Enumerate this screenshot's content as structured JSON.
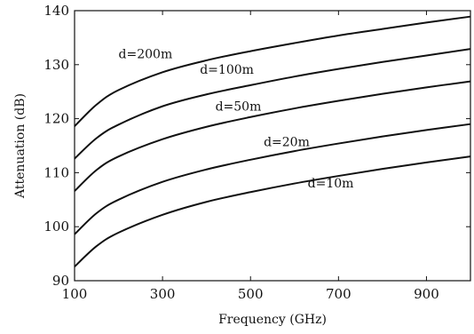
{
  "chart_data": {
    "type": "line",
    "title": "",
    "xlabel": "Frequency (GHz)",
    "ylabel": "Attenuation (dB)",
    "xlim": [
      100,
      1000
    ],
    "ylim": [
      90,
      140
    ],
    "x_ticks": [
      100,
      300,
      500,
      700,
      900
    ],
    "y_ticks": [
      90,
      100,
      110,
      120,
      130,
      140
    ],
    "x_tick_labels": [
      "100",
      "300",
      "500",
      "700",
      "900"
    ],
    "y_tick_labels": [
      "90",
      "100",
      "110",
      "120",
      "130",
      "140"
    ],
    "grid": false,
    "x": [
      100,
      150,
      200,
      300,
      400,
      500,
      600,
      700,
      800,
      900,
      1000
    ],
    "series": [
      {
        "name": "d=200m",
        "values": [
          118.6,
          122.6,
          125.3,
          128.6,
          130.8,
          132.5,
          134.0,
          135.4,
          136.6,
          137.8,
          138.9
        ]
      },
      {
        "name": "d=100m",
        "values": [
          112.6,
          116.4,
          118.9,
          122.3,
          124.5,
          126.2,
          127.8,
          129.2,
          130.5,
          131.7,
          132.9
        ]
      },
      {
        "name": "d=50m",
        "values": [
          106.6,
          110.5,
          113.0,
          116.2,
          118.5,
          120.3,
          121.9,
          123.3,
          124.6,
          125.8,
          126.9
        ]
      },
      {
        "name": "d=20m",
        "values": [
          98.6,
          102.5,
          105.0,
          108.3,
          110.6,
          112.4,
          114.0,
          115.4,
          116.7,
          117.9,
          119.0
        ]
      },
      {
        "name": "d=10m",
        "values": [
          92.6,
          96.4,
          98.9,
          102.2,
          104.6,
          106.4,
          108.0,
          109.4,
          110.7,
          111.9,
          113.0
        ]
      }
    ],
    "series_labels": [
      {
        "text": "d=200m",
        "at": [
          200,
          131.2
        ]
      },
      {
        "text": "d=100m",
        "at": [
          385,
          128.3
        ]
      },
      {
        "text": "d=50m",
        "at": [
          420,
          121.5
        ]
      },
      {
        "text": "d=20m",
        "at": [
          530,
          114.9
        ]
      },
      {
        "text": "d=10m",
        "at": [
          630,
          107.3
        ]
      }
    ]
  }
}
